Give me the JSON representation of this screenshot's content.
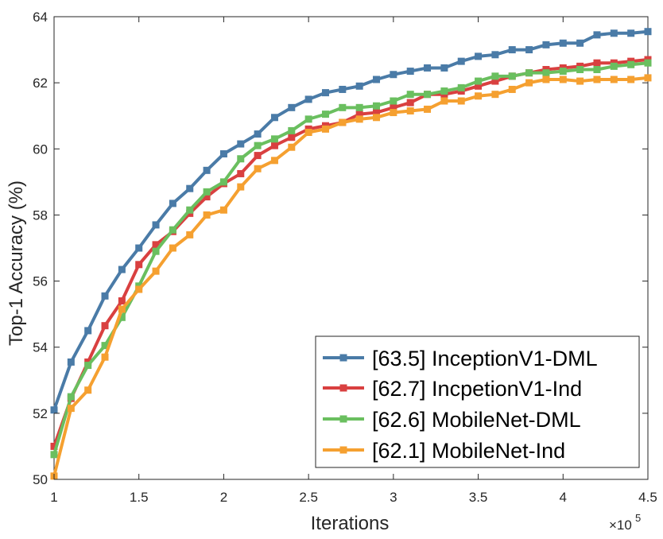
{
  "chart_data": {
    "type": "line",
    "title": "",
    "xlabel": "Iterations",
    "ylabel": "Top-1 Accuracy (%)",
    "x_multiplier_label": "×10",
    "x_multiplier_exponent": "5",
    "xlim": [
      1,
      4.5
    ],
    "ylim": [
      50,
      64
    ],
    "xticks": [
      1,
      1.5,
      2,
      2.5,
      3,
      3.5,
      4,
      4.5
    ],
    "xtick_labels": [
      "1",
      "1.5",
      "2",
      "2.5",
      "3",
      "3.5",
      "4",
      "4.5"
    ],
    "yticks": [
      50,
      52,
      54,
      56,
      58,
      60,
      62,
      64
    ],
    "ytick_labels": [
      "50",
      "52",
      "54",
      "56",
      "58",
      "60",
      "62",
      "64"
    ],
    "grid": false,
    "legend_position": "bottom-right",
    "x": [
      1.0,
      1.1,
      1.2,
      1.3,
      1.4,
      1.5,
      1.6,
      1.7,
      1.8,
      1.9,
      2.0,
      2.1,
      2.2,
      2.3,
      2.4,
      2.5,
      2.6,
      2.7,
      2.8,
      2.9,
      3.0,
      3.1,
      3.2,
      3.3,
      3.4,
      3.5,
      3.6,
      3.7,
      3.8,
      3.9,
      4.0,
      4.1,
      4.2,
      4.3,
      4.4,
      4.5
    ],
    "series": [
      {
        "name": "[63.5] InceptionV1-DML",
        "color": "#4a7ba7",
        "values": [
          52.1,
          53.55,
          54.5,
          55.55,
          56.35,
          57.0,
          57.7,
          58.35,
          58.8,
          59.35,
          59.85,
          60.15,
          60.45,
          60.95,
          61.25,
          61.5,
          61.7,
          61.8,
          61.9,
          62.1,
          62.25,
          62.35,
          62.45,
          62.45,
          62.65,
          62.8,
          62.85,
          63.0,
          63.0,
          63.15,
          63.2,
          63.2,
          63.45,
          63.5,
          63.5,
          63.55
        ]
      },
      {
        "name": "[62.7] IncpetionV1-Ind",
        "color": "#d94040",
        "values": [
          51.0,
          52.45,
          53.55,
          54.65,
          55.4,
          56.5,
          57.1,
          57.5,
          58.05,
          58.55,
          58.95,
          59.25,
          59.8,
          60.1,
          60.35,
          60.6,
          60.7,
          60.8,
          61.05,
          61.1,
          61.25,
          61.4,
          61.65,
          61.65,
          61.75,
          61.9,
          62.05,
          62.2,
          62.3,
          62.4,
          62.45,
          62.5,
          62.6,
          62.6,
          62.65,
          62.7
        ]
      },
      {
        "name": "[62.6] MobileNet-DML",
        "color": "#6abf5f",
        "values": [
          50.75,
          52.5,
          53.45,
          54.05,
          54.9,
          55.85,
          56.9,
          57.55,
          58.15,
          58.7,
          59.0,
          59.7,
          60.1,
          60.3,
          60.55,
          60.9,
          61.05,
          61.25,
          61.25,
          61.3,
          61.45,
          61.65,
          61.65,
          61.75,
          61.85,
          62.05,
          62.2,
          62.2,
          62.3,
          62.3,
          62.35,
          62.4,
          62.4,
          62.5,
          62.55,
          62.6
        ]
      },
      {
        "name": "[62.1] MobileNet-Ind",
        "color": "#f5a030",
        "values": [
          50.1,
          52.15,
          52.7,
          53.7,
          55.15,
          55.75,
          56.3,
          57.0,
          57.4,
          58.0,
          58.15,
          58.85,
          59.4,
          59.65,
          60.05,
          60.5,
          60.6,
          60.8,
          60.9,
          60.95,
          61.1,
          61.15,
          61.2,
          61.45,
          61.45,
          61.6,
          61.65,
          61.8,
          62.0,
          62.1,
          62.1,
          62.05,
          62.1,
          62.1,
          62.1,
          62.15
        ]
      }
    ]
  }
}
